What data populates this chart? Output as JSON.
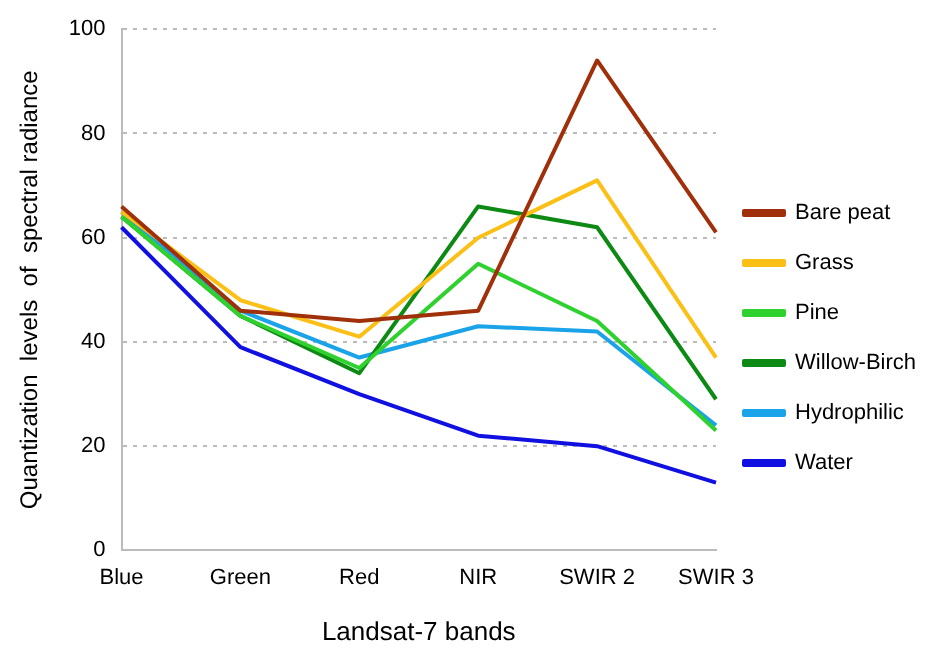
{
  "chart_data": {
    "type": "line",
    "xlabel": "Landsat-7 bands",
    "ylabel": "Quantization  levels  of  spectral radiance",
    "categories": [
      "Blue",
      "Green",
      "Red",
      "NIR",
      "SWIR 2",
      "SWIR 3"
    ],
    "series": [
      {
        "name": "Bare peat",
        "color": "#a0300a",
        "values": [
          66,
          46,
          44,
          46,
          94,
          61
        ]
      },
      {
        "name": "Grass",
        "color": "#fbbf16",
        "values": [
          65,
          48,
          41,
          60,
          71,
          37
        ]
      },
      {
        "name": "Pine",
        "color": "#2ed12e",
        "values": [
          64,
          45,
          35,
          55,
          44,
          23
        ]
      },
      {
        "name": "Willow-Birch",
        "color": "#0d8a14",
        "values": [
          64,
          45,
          34,
          66,
          62,
          29
        ]
      },
      {
        "name": "Hydrophilic",
        "color": "#1aa3e8",
        "values": [
          65,
          46,
          37,
          43,
          42,
          24
        ]
      },
      {
        "name": "Water",
        "color": "#1010e0",
        "values": [
          62,
          39,
          30,
          22,
          20,
          13
        ]
      }
    ],
    "ylim": [
      0,
      100
    ],
    "yticks": [
      0,
      20,
      40,
      60,
      80,
      100
    ],
    "grid": "y",
    "legend": "right",
    "marker": "none",
    "line_style": "solid"
  }
}
